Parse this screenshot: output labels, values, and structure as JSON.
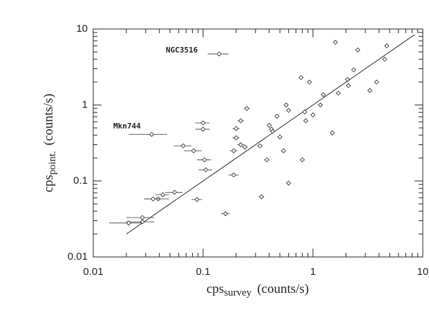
{
  "chart_data": {
    "type": "scatter",
    "xscale": "log",
    "yscale": "log",
    "xlabel": {
      "base": "cps",
      "sub": "survey",
      "unit": "(counts/s)"
    },
    "ylabel": {
      "base": "cps",
      "sub": "point.",
      "unit": "(counts/s)"
    },
    "xlim": [
      0.01,
      10
    ],
    "ylim": [
      0.01,
      10
    ],
    "xticks": [
      0.01,
      0.1,
      1,
      10
    ],
    "yticks": [
      0.01,
      0.1,
      1,
      10
    ],
    "color": "#333333",
    "annotations": [
      "NGC3516",
      "Mkn744"
    ],
    "x": [
      0.14,
      0.034,
      1.6,
      2.56,
      4.7,
      4.5,
      2.35,
      0.78,
      0.93,
      2.06,
      2.1,
      3.8,
      3.3,
      1.7,
      1.24,
      1.17,
      0.57,
      0.6,
      0.84,
      1.0,
      0.86,
      0.25,
      0.47,
      0.4,
      0.42,
      0.43,
      0.5,
      0.1,
      0.1,
      0.22,
      0.2,
      0.2,
      0.22,
      0.24,
      0.19,
      0.33,
      0.066,
      0.082,
      0.103,
      0.106,
      0.38,
      0.54,
      0.8,
      1.5,
      0.19,
      0.6,
      0.34,
      0.055,
      0.043,
      0.039,
      0.035,
      0.088,
      0.028,
      0.028,
      0.021,
      0.16
    ],
    "xerr": [
      0.03,
      0.013,
      0.05,
      0.08,
      0.1,
      0.1,
      0.07,
      0.03,
      0.03,
      0.06,
      0.06,
      0.1,
      0.1,
      0.05,
      0.04,
      0.04,
      0.02,
      0.02,
      0.03,
      0.03,
      0.03,
      0.015,
      0.02,
      0.02,
      0.02,
      0.02,
      0.02,
      0.015,
      0.015,
      0.015,
      0.015,
      0.015,
      0.015,
      0.015,
      0.015,
      0.02,
      0.012,
      0.015,
      0.015,
      0.015,
      0.02,
      0.02,
      0.03,
      0.04,
      0.02,
      0.02,
      0.02,
      0.01,
      0.006,
      0.01,
      0.006,
      0.01,
      0.008,
      0.008,
      0.007,
      0.015
    ],
    "y": [
      4.7,
      0.41,
      6.7,
      5.3,
      6.0,
      4.0,
      2.9,
      2.3,
      2.0,
      2.17,
      1.8,
      2.0,
      1.55,
      1.43,
      1.37,
      1.0,
      1.0,
      0.85,
      0.81,
      0.74,
      0.62,
      0.9,
      0.71,
      0.54,
      0.48,
      0.45,
      0.38,
      0.58,
      0.48,
      0.62,
      0.49,
      0.37,
      0.3,
      0.28,
      0.25,
      0.29,
      0.29,
      0.25,
      0.19,
      0.14,
      0.19,
      0.25,
      0.19,
      0.43,
      0.12,
      0.094,
      0.062,
      0.071,
      0.066,
      0.058,
      0.058,
      0.057,
      0.033,
      0.029,
      0.028,
      0.037
    ],
    "fit_line": {
      "x": [
        0.02,
        8.4
      ],
      "y": [
        0.02,
        8.4
      ]
    }
  }
}
